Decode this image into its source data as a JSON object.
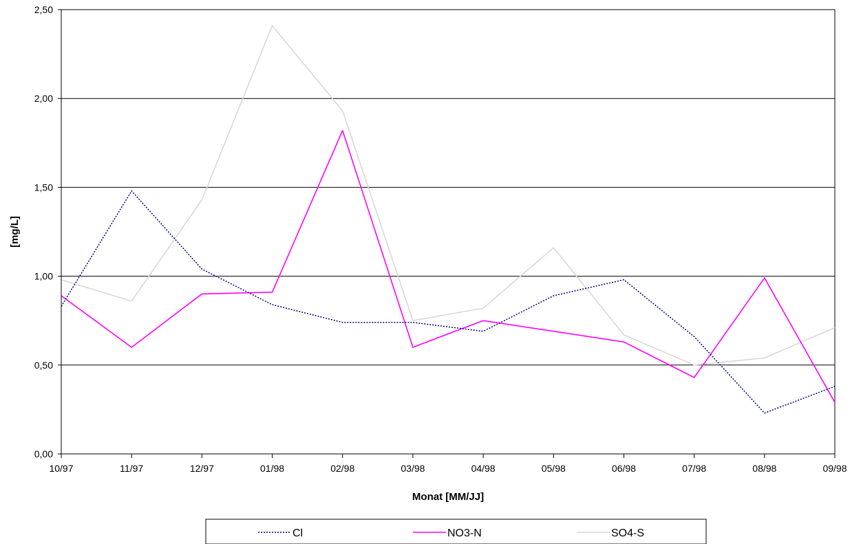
{
  "chart_data": {
    "type": "line",
    "xlabel": "Monat [MM/JJ]",
    "ylabel": "[mg/L]",
    "categories": [
      "10/97",
      "11/97",
      "12/97",
      "01/98",
      "02/98",
      "03/98",
      "04/98",
      "05/98",
      "06/98",
      "07/98",
      "08/98",
      "09/98"
    ],
    "ylim": [
      0,
      2.5
    ],
    "yticks": [
      "0,00",
      "0,50",
      "1,00",
      "1,50",
      "2,00",
      "2,50"
    ],
    "grid": "horizontal",
    "legend_position": "bottom",
    "series": [
      {
        "name": "Cl",
        "color": "#000080",
        "style": "dotted",
        "values": [
          0.83,
          1.48,
          1.04,
          0.84,
          0.74,
          0.74,
          0.69,
          0.89,
          0.98,
          0.66,
          0.23,
          0.38
        ]
      },
      {
        "name": "NO3-N",
        "color": "#ff00ff",
        "style": "solid",
        "values": [
          0.89,
          0.6,
          0.9,
          0.91,
          1.82,
          0.6,
          0.75,
          0.69,
          0.63,
          0.43,
          0.99,
          0.29
        ]
      },
      {
        "name": "SO4-S",
        "color": "#d8d8d8",
        "style": "solid",
        "values": [
          0.98,
          0.86,
          1.43,
          2.41,
          1.93,
          0.75,
          0.82,
          1.16,
          0.67,
          0.5,
          0.54,
          0.71
        ]
      }
    ]
  }
}
